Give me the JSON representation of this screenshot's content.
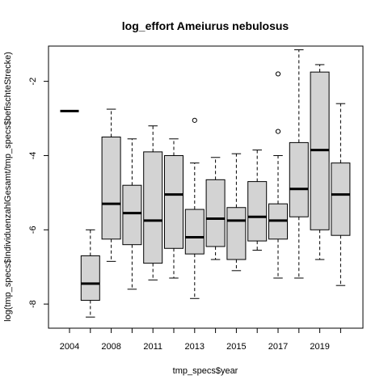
{
  "chart_data": {
    "type": "boxplot",
    "title": "log_effort Ameiurus nebulosus",
    "xlabel": "tmp_specs$year",
    "ylabel": "log(tmp_specs$IndividuenzahlGesamt/tmp_specs$befischteStrecke)",
    "ylim": [
      -8.65,
      -1.05
    ],
    "y_ticks": [
      -8,
      -6,
      -4,
      -2
    ],
    "x_tick_labels": [
      "2004",
      "2008",
      "2011",
      "2013",
      "2015",
      "2017",
      "2019"
    ],
    "colors": {
      "box_fill": "#d3d3d3",
      "stroke": "#000000"
    },
    "boxes": [
      {
        "label": "2004",
        "min": -2.8,
        "q1": -2.8,
        "median": -2.8,
        "q3": -2.8,
        "max": -2.8,
        "outliers": []
      },
      {
        "label": "",
        "min": -8.35,
        "q1": -7.9,
        "median": -7.45,
        "q3": -6.7,
        "max": -6.0,
        "outliers": []
      },
      {
        "label": "2008",
        "min": -6.85,
        "q1": -6.25,
        "median": -5.3,
        "q3": -3.5,
        "max": -2.75,
        "outliers": []
      },
      {
        "label": "",
        "min": -7.6,
        "q1": -6.4,
        "median": -5.55,
        "q3": -4.8,
        "max": -3.55,
        "outliers": []
      },
      {
        "label": "2011",
        "min": -7.35,
        "q1": -6.9,
        "median": -5.75,
        "q3": -3.9,
        "max": -3.2,
        "outliers": []
      },
      {
        "label": "",
        "min": -7.3,
        "q1": -6.5,
        "median": -5.05,
        "q3": -4.0,
        "max": -3.55,
        "outliers": []
      },
      {
        "label": "2013",
        "min": -7.85,
        "q1": -6.65,
        "median": -6.2,
        "q3": -5.45,
        "max": -4.2,
        "outliers": [
          -3.05
        ]
      },
      {
        "label": "",
        "min": -6.8,
        "q1": -6.45,
        "median": -5.7,
        "q3": -4.65,
        "max": -4.05,
        "outliers": []
      },
      {
        "label": "2015",
        "min": -7.1,
        "q1": -6.8,
        "median": -5.75,
        "q3": -5.4,
        "max": -3.95,
        "outliers": []
      },
      {
        "label": "",
        "min": -6.55,
        "q1": -6.3,
        "median": -5.65,
        "q3": -4.7,
        "max": -3.85,
        "outliers": []
      },
      {
        "label": "2017",
        "min": -7.3,
        "q1": -6.25,
        "median": -5.75,
        "q3": -5.3,
        "max": -4.0,
        "outliers": [
          -1.8,
          -3.35
        ]
      },
      {
        "label": "",
        "min": -7.3,
        "q1": -5.65,
        "median": -4.9,
        "q3": -3.65,
        "max": -1.15,
        "outliers": []
      },
      {
        "label": "2019",
        "min": -6.8,
        "q1": -6.0,
        "median": -3.85,
        "q3": -1.75,
        "max": -1.55,
        "outliers": []
      },
      {
        "label": "",
        "min": -7.5,
        "q1": -6.15,
        "median": -5.05,
        "q3": -4.2,
        "max": -2.6,
        "outliers": []
      }
    ]
  }
}
